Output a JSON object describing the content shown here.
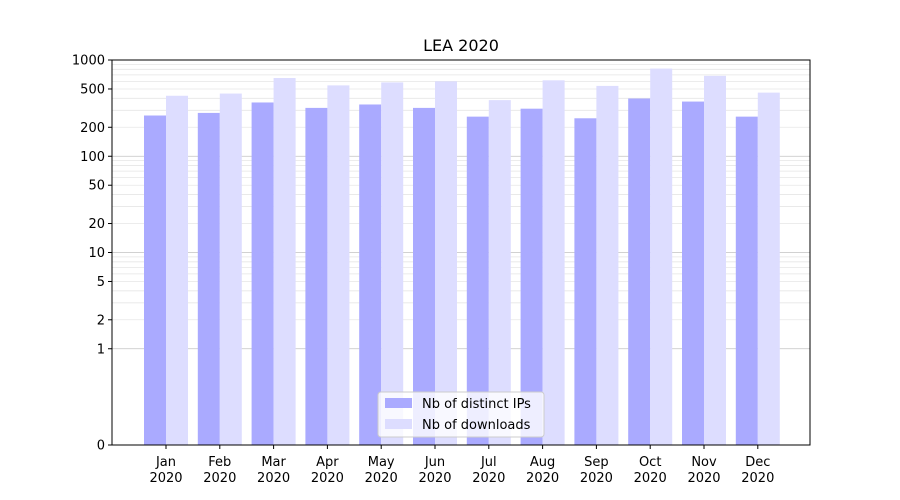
{
  "chart_data": {
    "type": "bar",
    "title": "LEA 2020",
    "xlabel": "",
    "ylabel": "",
    "yscale": "symlog",
    "ylim": [
      0,
      1000
    ],
    "yticks": [
      {
        "value": 0,
        "label": "0"
      },
      {
        "value": 1,
        "label": "1"
      },
      {
        "value": 2,
        "label": "2"
      },
      {
        "value": 5,
        "label": "5"
      },
      {
        "value": 10,
        "label": "10"
      },
      {
        "value": 20,
        "label": "20"
      },
      {
        "value": 50,
        "label": "50"
      },
      {
        "value": 100,
        "label": "100"
      },
      {
        "value": 200,
        "label": "200"
      },
      {
        "value": 500,
        "label": "500"
      },
      {
        "value": 1000,
        "label": "1000"
      }
    ],
    "categories": [
      {
        "month": "Jan",
        "year": "2020"
      },
      {
        "month": "Feb",
        "year": "2020"
      },
      {
        "month": "Mar",
        "year": "2020"
      },
      {
        "month": "Apr",
        "year": "2020"
      },
      {
        "month": "May",
        "year": "2020"
      },
      {
        "month": "Jun",
        "year": "2020"
      },
      {
        "month": "Jul",
        "year": "2020"
      },
      {
        "month": "Aug",
        "year": "2020"
      },
      {
        "month": "Sep",
        "year": "2020"
      },
      {
        "month": "Oct",
        "year": "2020"
      },
      {
        "month": "Nov",
        "year": "2020"
      },
      {
        "month": "Dec",
        "year": "2020"
      }
    ],
    "series": [
      {
        "name": "Nb of distinct IPs",
        "color": "#aaaaff",
        "values": [
          265,
          282,
          362,
          318,
          345,
          318,
          258,
          312,
          248,
          398,
          370,
          258
        ]
      },
      {
        "name": "Nb of downloads",
        "color": "#ddddff",
        "values": [
          425,
          448,
          650,
          545,
          585,
          600,
          383,
          615,
          538,
          815,
          685,
          458
        ]
      }
    ],
    "legend_position": "lower-center"
  }
}
